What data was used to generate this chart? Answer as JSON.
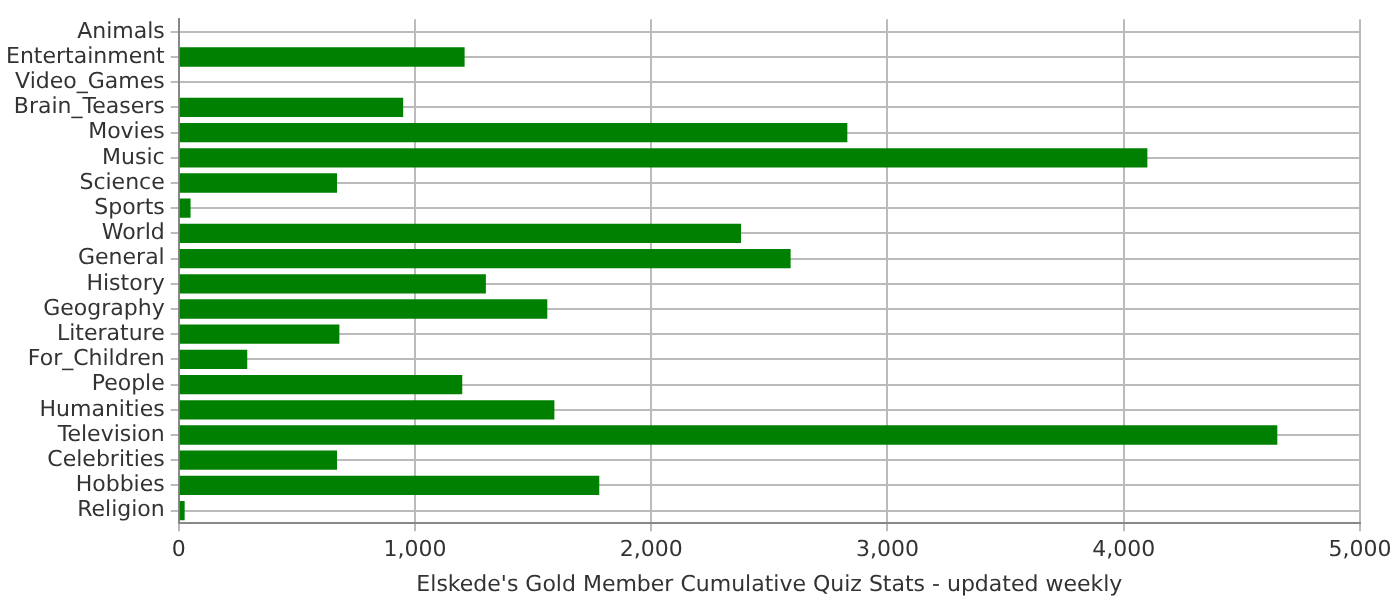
{
  "chart_data": {
    "type": "bar",
    "orientation": "horizontal",
    "xlabel": "Elskede's Gold Member Cumulative Quiz Stats - updated weekly",
    "categories": [
      "Animals",
      "Entertainment",
      "Video_Games",
      "Brain_Teasers",
      "Movies",
      "Music",
      "Science",
      "Sports",
      "World",
      "General",
      "History",
      "Geography",
      "Literature",
      "For_Children",
      "People",
      "Humanities",
      "Television",
      "Celebrities",
      "Hobbies",
      "Religion"
    ],
    "values": [
      0,
      1210,
      0,
      950,
      2830,
      4100,
      670,
      50,
      2380,
      2590,
      1300,
      1560,
      680,
      290,
      1200,
      1590,
      4650,
      670,
      1780,
      25
    ],
    "color": "#008000",
    "xlim": [
      0,
      5000
    ],
    "xticks": [
      0,
      {
        "value": 1000,
        "label": "1,000"
      },
      {
        "value": 2000,
        "label": "2,000"
      },
      {
        "value": 3000,
        "label": "3,000"
      },
      {
        "value": 4000,
        "label": "4,000"
      },
      {
        "value": 5000,
        "label": "5,000"
      }
    ],
    "grid": true
  }
}
